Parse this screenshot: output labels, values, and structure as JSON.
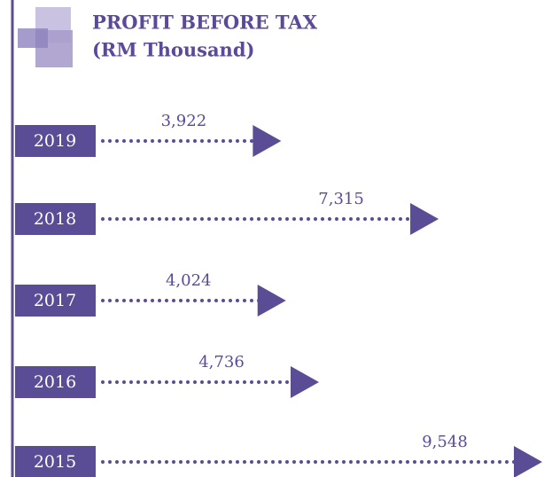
{
  "chart_data": {
    "type": "bar",
    "orientation": "horizontal",
    "title": "PROFIT BEFORE TAX",
    "subtitle": "(RM Thousand)",
    "categories": [
      "2019",
      "2018",
      "2017",
      "2016",
      "2015"
    ],
    "values": [
      3922,
      7315,
      4024,
      4736,
      9548
    ],
    "value_labels": [
      "3,922",
      "7,315",
      "4,024",
      "4,736",
      "9,548"
    ],
    "color": "#5b4c96"
  }
}
